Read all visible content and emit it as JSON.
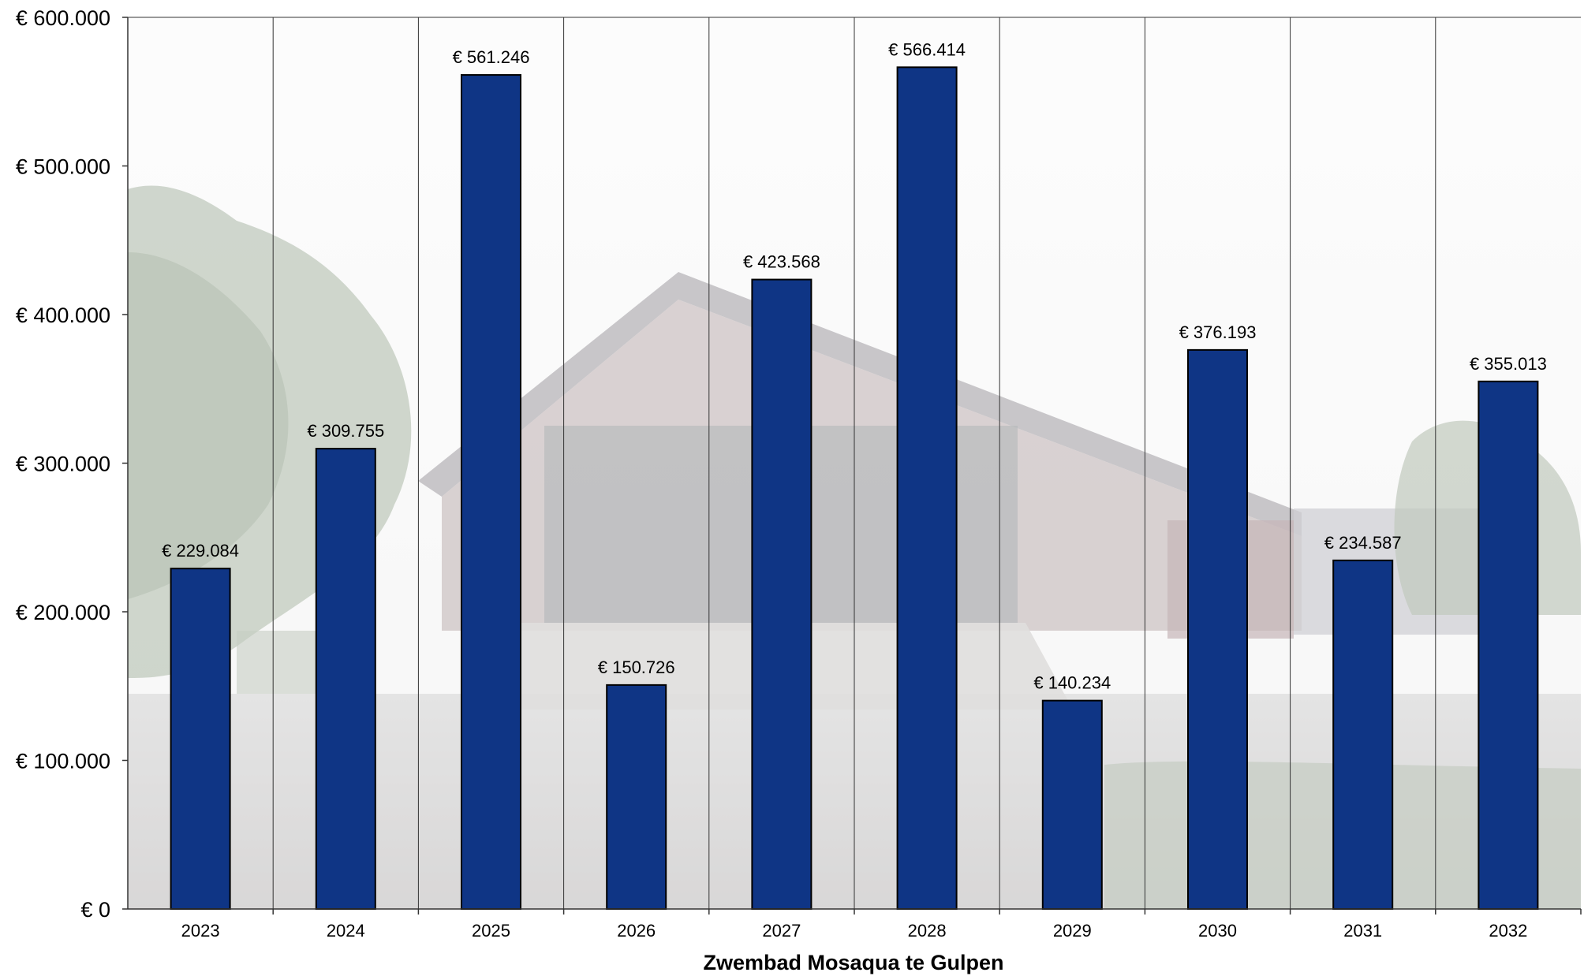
{
  "chart_data": {
    "type": "bar",
    "categories": [
      "2023",
      "2024",
      "2025",
      "2026",
      "2027",
      "2028",
      "2029",
      "2030",
      "2031",
      "2032"
    ],
    "values": [
      229084,
      309755,
      561246,
      150726,
      423568,
      566414,
      140234,
      376193,
      234587,
      355013
    ],
    "data_labels": [
      "€ 229.084",
      "€ 309.755",
      "€ 561.246",
      "€ 150.726",
      "€ 423.568",
      "€ 566.414",
      "€ 140.234",
      "€ 376.193",
      "€ 234.587",
      "€ 355.013"
    ],
    "y_ticks": [
      0,
      100000,
      200000,
      300000,
      400000,
      500000,
      600000
    ],
    "y_tick_labels": [
      "€ 0",
      "€ 100.000",
      "€ 200.000",
      "€ 300.000",
      "€ 400.000",
      "€ 500.000",
      "€ 600.000"
    ],
    "ylim": [
      0,
      600000
    ],
    "xlabel": "Zwembad Mosaqua te Gulpen",
    "ylabel": "",
    "title": "",
    "grid": "vertical lines between categories",
    "background": "faded photograph of the swimming pool building",
    "colors": {
      "bar_fill": "#0f3585",
      "bar_stroke": "#000000",
      "grid_line": "#333333"
    }
  }
}
